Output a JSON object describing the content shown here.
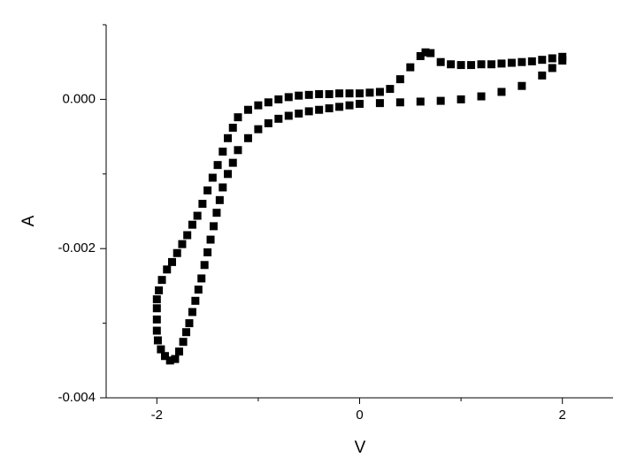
{
  "chart_data": {
    "type": "scatter",
    "x_label": "V",
    "y_label": "A",
    "color": "#000000",
    "marker": "square",
    "xlim": [
      -2.5,
      2.5
    ],
    "ylim": [
      -0.004,
      0.001
    ],
    "xticks": [
      -2,
      0,
      2
    ],
    "xminorticks": [
      -1,
      1
    ],
    "yticks": [
      {
        "value": -0.004,
        "label": "-0.004"
      },
      {
        "value": -0.002,
        "label": "-0.002"
      },
      {
        "value": 0,
        "label": "0.000"
      }
    ],
    "yminorticks": [
      -0.003,
      -0.001,
      0.001
    ],
    "x": [
      2.0,
      1.9,
      1.8,
      1.7,
      1.6,
      1.5,
      1.4,
      1.3,
      1.2,
      1.1,
      1.0,
      0.9,
      0.8,
      0.7,
      0.65,
      0.6,
      0.5,
      0.4,
      0.3,
      0.2,
      0.1,
      0.0,
      -0.1,
      -0.2,
      -0.3,
      -0.4,
      -0.5,
      -0.6,
      -0.7,
      -0.8,
      -0.9,
      -1.0,
      -1.1,
      -1.2,
      -1.25,
      -1.3,
      -1.35,
      -1.4,
      -1.45,
      -1.5,
      -1.55,
      -1.6,
      -1.65,
      -1.7,
      -1.75,
      -1.8,
      -1.85,
      -1.9,
      -1.95,
      -1.98,
      -2.0,
      -2.0,
      -2.0,
      -2.0,
      -1.99,
      -1.96,
      -1.92,
      -1.87,
      -1.82,
      -1.78,
      -1.74,
      -1.71,
      -1.68,
      -1.65,
      -1.62,
      -1.59,
      -1.56,
      -1.53,
      -1.5,
      -1.47,
      -1.44,
      -1.41,
      -1.38,
      -1.35,
      -1.3,
      -1.25,
      -1.2,
      -1.1,
      -1.0,
      -0.9,
      -0.8,
      -0.7,
      -0.6,
      -0.5,
      -0.4,
      -0.3,
      -0.2,
      -0.1,
      0.0,
      0.2,
      0.4,
      0.6,
      0.8,
      1.0,
      1.2,
      1.4,
      1.6,
      1.8,
      1.9,
      2.0
    ],
    "values": [
      0.00057,
      0.00055,
      0.00053,
      0.00051,
      0.0005,
      0.00049,
      0.00048,
      0.00047,
      0.00047,
      0.00046,
      0.00046,
      0.00047,
      0.0005,
      0.00062,
      0.00063,
      0.00058,
      0.00043,
      0.00027,
      0.00014,
      0.0001,
      9e-05,
      8e-05,
      8e-05,
      8e-05,
      7e-05,
      7e-05,
      6e-05,
      5e-05,
      3e-05,
      0.0,
      -4e-05,
      -8e-05,
      -0.00014,
      -0.00024,
      -0.00038,
      -0.00052,
      -0.0007,
      -0.00088,
      -0.00105,
      -0.00122,
      -0.0014,
      -0.00156,
      -0.00168,
      -0.00182,
      -0.00194,
      -0.00206,
      -0.00218,
      -0.00228,
      -0.00242,
      -0.00256,
      -0.00268,
      -0.0028,
      -0.00295,
      -0.0031,
      -0.00323,
      -0.00335,
      -0.00344,
      -0.0035,
      -0.00348,
      -0.00338,
      -0.00325,
      -0.00312,
      -0.003,
      -0.00285,
      -0.0027,
      -0.00255,
      -0.0024,
      -0.00222,
      -0.00205,
      -0.00188,
      -0.0017,
      -0.00152,
      -0.00135,
      -0.00118,
      -0.001,
      -0.00085,
      -0.00068,
      -0.00052,
      -0.0004,
      -0.00032,
      -0.00026,
      -0.00022,
      -0.00019,
      -0.00016,
      -0.00014,
      -0.00012,
      -0.0001,
      -8e-05,
      -6e-05,
      -5e-05,
      -4e-05,
      -3e-05,
      -2e-05,
      0.0,
      4e-05,
      0.0001,
      0.00018,
      0.00032,
      0.00042,
      0.00052
    ]
  }
}
